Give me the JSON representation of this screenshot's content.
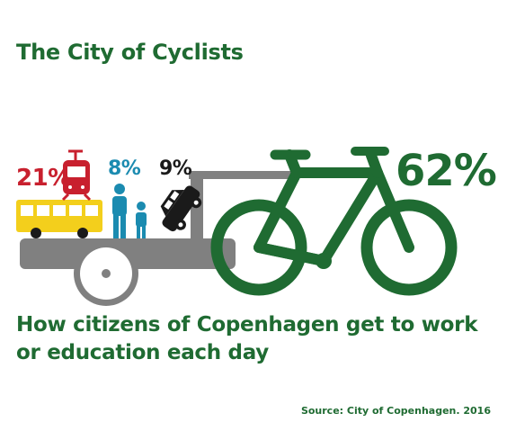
{
  "title": "The City of Cyclists",
  "subtitle_line1": "How citizens of Copenhagen get to work",
  "subtitle_line2": "or education each day",
  "source": "Source: City of Copenhagen. 2016",
  "chart_data": {
    "type": "pictogram",
    "title": "The City of Cyclists",
    "subtitle": "How citizens of Copenhagen get to work or education each day",
    "unit": "%",
    "categories": [
      "public-transport",
      "walking",
      "car",
      "bicycle"
    ],
    "values": [
      21,
      8,
      9,
      62
    ],
    "labels": [
      "21%",
      "8%",
      "9%",
      "62%"
    ],
    "icons": [
      "tram-and-bus-icon",
      "pedestrians-icon",
      "car-icon",
      "bicycle-icon"
    ],
    "colors": {
      "public-transport": "#c8202e",
      "walking": "#1b8bb0",
      "car": "#1a1a1a",
      "bicycle": "#1f6b32"
    }
  },
  "colors": {
    "bike_green": "#1f6b32",
    "bus_yellow": "#f3cf1c",
    "tram_red": "#c8202e",
    "walk_blue": "#1b8bb0",
    "cart_grey": "#808080"
  }
}
